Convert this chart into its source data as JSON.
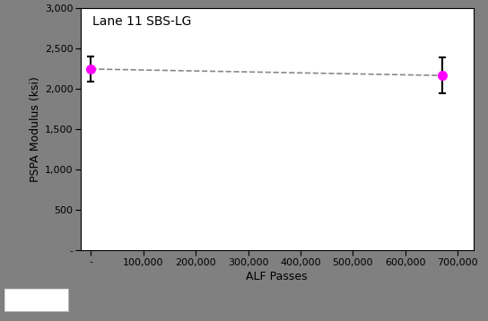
{
  "title": "Lane 11 SBS-LG",
  "xlabel": "ALF Passes",
  "ylabel": "PSPA Modulus (ksi)",
  "x": [
    0,
    670000
  ],
  "y": [
    2245,
    2165
  ],
  "yerr": [
    155,
    220
  ],
  "marker_color": "#FF00FF",
  "line_color": "#888888",
  "error_bar_color": "#000000",
  "ylim": [
    0,
    3000
  ],
  "xlim": [
    -20000,
    730000
  ],
  "yticks": [
    0,
    500,
    1000,
    1500,
    2000,
    2500,
    3000
  ],
  "xticks": [
    0,
    100000,
    200000,
    300000,
    400000,
    500000,
    600000,
    700000
  ],
  "background_color": "#ffffff",
  "outer_background": "#808080",
  "title_fontsize": 10,
  "axis_fontsize": 9,
  "tick_fontsize": 8,
  "title_color": "#000000"
}
